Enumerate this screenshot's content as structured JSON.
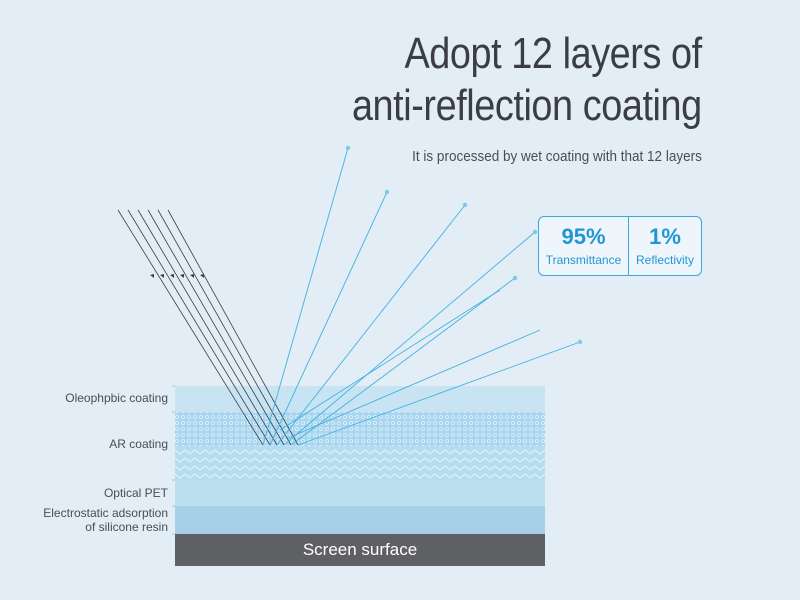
{
  "heading": {
    "line1": "Adopt 12 layers of",
    "line2": "anti-reflection coating",
    "subtitle": "It is processed by wet coating with that 12 layers"
  },
  "stats": [
    {
      "value": "95%",
      "label": "Transmittance"
    },
    {
      "value": "1%",
      "label": "Reflectivity"
    }
  ],
  "layers": {
    "oleophobic": "Oleophpbic coating",
    "ar": "AR coating",
    "pet": "Optical PET",
    "adsorption_line1": "Electrostatic adsorption",
    "adsorption_line2": "of silicone resin",
    "screen": "Screen surface"
  },
  "colors": {
    "background": "#e3edf6",
    "accent": "#2196d3",
    "screen": "#5f6063"
  }
}
